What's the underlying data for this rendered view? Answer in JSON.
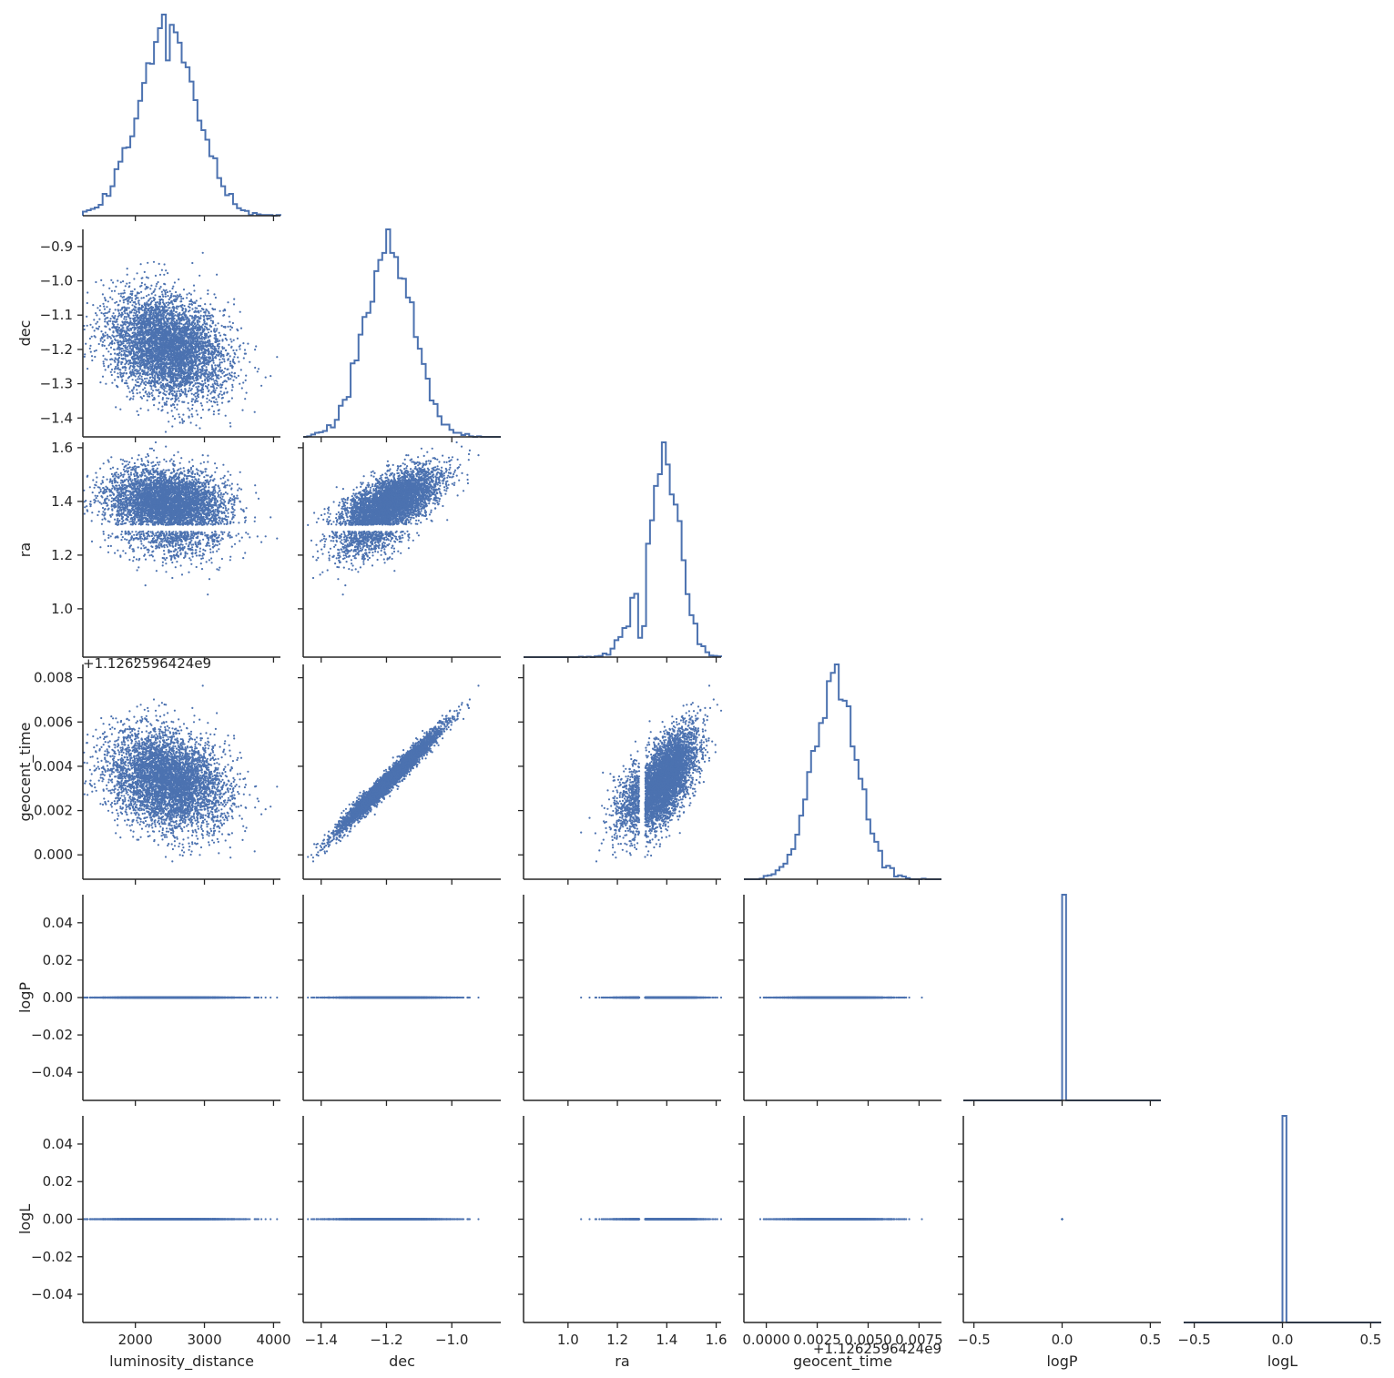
{
  "chart_data": {
    "type": "scatter",
    "subtype": "corner pair plot (histograms on diagonal, scatter below diagonal)",
    "variables": [
      "luminosity_distance",
      "dec",
      "ra",
      "geocent_time",
      "logP",
      "logL"
    ],
    "axis_labels": {
      "x": [
        "luminosity_distance",
        "dec",
        "ra",
        "geocent_time",
        "logP",
        "logL"
      ],
      "y": [
        "",
        "dec",
        "ra",
        "geocent_time",
        "logP",
        "logL"
      ]
    },
    "geocent_time_offset_label": "+1.1262596424e9",
    "ranges": {
      "luminosity_distance": [
        1240,
        4100
      ],
      "dec": [
        -1.455,
        -0.85
      ],
      "ra": [
        0.82,
        1.62
      ],
      "geocent_time": [
        -0.0011,
        0.0086
      ],
      "logP": [
        -0.055,
        0.055
      ],
      "logL": [
        -0.055,
        0.055
      ]
    },
    "ranges_x_diag": {
      "logP": [
        -0.56,
        0.56
      ],
      "logL": [
        -0.56,
        0.56
      ]
    },
    "ticks": {
      "luminosity_distance": [
        2000,
        3000,
        4000
      ],
      "dec": [
        -1.4,
        -1.3,
        -1.2,
        -1.1,
        -1.0,
        -0.9
      ],
      "dec_x": [
        -1.4,
        -1.2,
        -1.0
      ],
      "ra": [
        1.0,
        1.2,
        1.4,
        1.6
      ],
      "geocent_time": [
        0.0,
        0.002,
        0.004,
        0.006,
        0.008
      ],
      "geocent_time_x": [
        0.0,
        0.0025,
        0.005,
        0.0075
      ],
      "logP": [
        -0.04,
        -0.02,
        0.0,
        0.02,
        0.04
      ],
      "logL": [
        -0.04,
        -0.02,
        0.0,
        0.02,
        0.04
      ],
      "diag_small": [
        -0.5,
        0.0,
        0.5
      ]
    },
    "tick_labels": {
      "luminosity_distance": [
        "2000",
        "3000",
        "4000"
      ],
      "dec_y": [
        "−1.4",
        "−1.3",
        "−1.2",
        "−1.1",
        "−1.0",
        "−0.9"
      ],
      "dec_x": [
        "−1.4",
        "−1.2",
        "−1.0"
      ],
      "ra_y": [
        "1.0",
        "1.2",
        "1.4",
        "1.6"
      ],
      "ra_x": [
        "1.0",
        "1.2",
        "1.4",
        "1.6"
      ],
      "geocent_time_y": [
        "0.000",
        "0.002",
        "0.004",
        "0.006",
        "0.008"
      ],
      "geocent_time_x": [
        "0.0000",
        "0.0025",
        "0.0050",
        "0.0075"
      ],
      "log_y": [
        "−0.04",
        "−0.02",
        "0.00",
        "0.02",
        "0.04"
      ],
      "diag_small_x": [
        "−0.5",
        "0.0",
        "0.5"
      ]
    },
    "marginals": {
      "luminosity_distance": {
        "mean": 2470,
        "std": 420
      },
      "dec": {
        "mean": -1.19,
        "std": 0.075
      },
      "ra": {
        "mean": 1.39,
        "std": 0.065
      },
      "geocent_time": {
        "mean": 0.0034,
        "std": 0.0011
      },
      "logP": {
        "value": 0.0
      },
      "logL": {
        "value": 0.0
      }
    },
    "correlations": {
      "dec~geocent_time": 0.98,
      "dec~ra": 0.65,
      "ra~geocent_time": 0.7,
      "luminosity_distance~dec": -0.25,
      "luminosity_distance~geocent_time": -0.25
    },
    "n_samples": 5000,
    "bins": 50,
    "series_color": "#4c72b0",
    "grid": false,
    "legend": "none"
  }
}
